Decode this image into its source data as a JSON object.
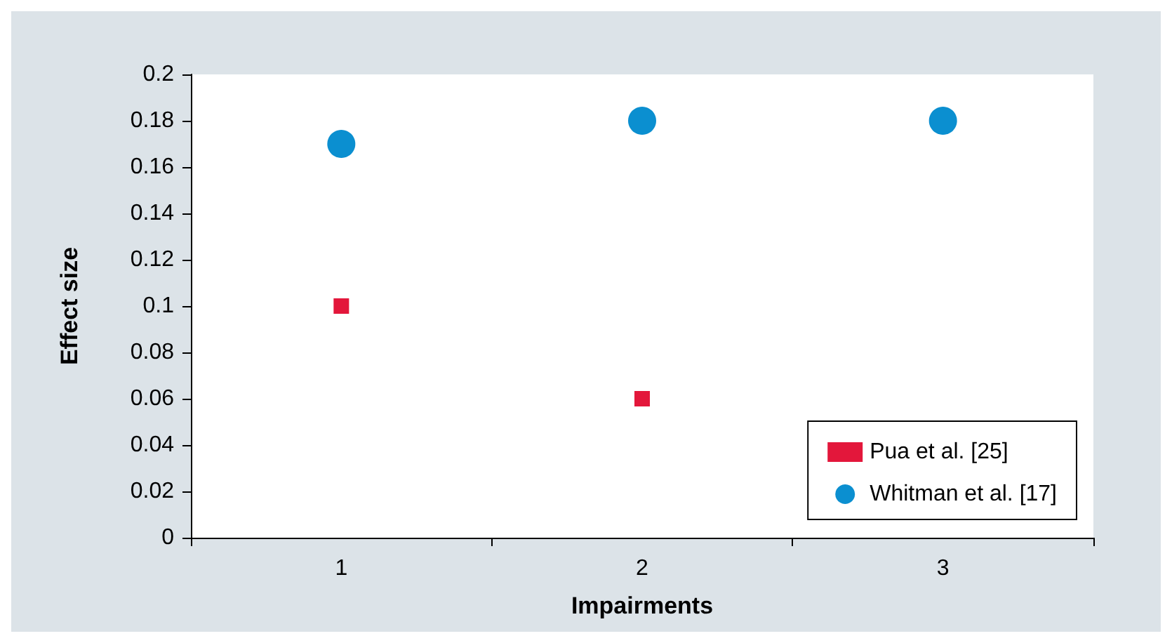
{
  "chart_data": {
    "type": "scatter",
    "xlabel": "Impairments",
    "ylabel": "Effect size",
    "categories": [
      "1",
      "2",
      "3"
    ],
    "series": [
      {
        "name": "Pua et al. [25]",
        "color": "#e3173b",
        "marker": "square",
        "values": [
          0.1,
          0.06,
          null
        ]
      },
      {
        "name": "Whitman et al. [17]",
        "color": "#0b8fd0",
        "marker": "circle",
        "values": [
          0.17,
          0.18,
          0.18
        ]
      }
    ],
    "ylim": [
      0,
      0.2
    ],
    "yticks": [
      0,
      0.02,
      0.04,
      0.06,
      0.08,
      0.1,
      0.12,
      0.14,
      0.16,
      0.18,
      0.2
    ],
    "grid": false,
    "legend": "bottom right"
  }
}
